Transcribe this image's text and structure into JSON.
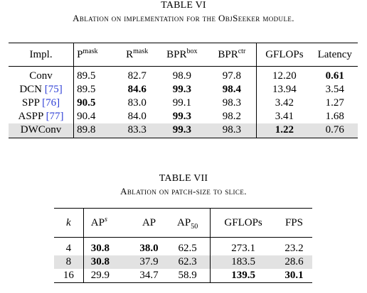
{
  "table6": {
    "number": "TABLE VI",
    "caption": "Ablation on implementation for the ObjSeeker module.",
    "headers": {
      "impl": "Impl.",
      "p_base": "P",
      "p_sup": "mask",
      "r_base": "R",
      "r_sup": "mask",
      "bprbox_base": "BPR",
      "bprbox_sup": "box",
      "bprctr_base": "BPR",
      "bprctr_sup": "ctr",
      "gflops": "GFLOPs",
      "latency": "Latency"
    },
    "rows": [
      {
        "name": "Conv",
        "cite": "",
        "p": "89.5",
        "r": "82.7",
        "bprbox": "98.9",
        "bprctr": "97.8",
        "gflops": "12.20",
        "latency": "0.61"
      },
      {
        "name": "DCN ",
        "cite": "[75]",
        "p": "89.5",
        "r": "84.6",
        "bprbox": "99.3",
        "bprctr": "98.4",
        "gflops": "13.94",
        "latency": "3.54"
      },
      {
        "name": "SPP ",
        "cite": "[76]",
        "p": "90.5",
        "r": "83.0",
        "bprbox": "99.1",
        "bprctr": "98.3",
        "gflops": "3.42",
        "latency": "1.27"
      },
      {
        "name": "ASPP ",
        "cite": "[77]",
        "p": "90.4",
        "r": "84.0",
        "bprbox": "99.3",
        "bprctr": "98.2",
        "gflops": "3.41",
        "latency": "1.68"
      },
      {
        "name": "DWConv",
        "cite": "",
        "p": "89.8",
        "r": "83.3",
        "bprbox": "99.3",
        "bprctr": "98.3",
        "gflops": "1.22",
        "latency": "0.76"
      }
    ]
  },
  "table7": {
    "number": "TABLE VII",
    "caption": "Ablation on patch-size to slice.",
    "headers": {
      "k": "k",
      "aps_base": "AP",
      "aps_sup": "s",
      "ap": "AP",
      "ap50_base": "AP",
      "ap50_sub": "50",
      "gflops": "GFLOPs",
      "fps": "FPS"
    },
    "rows": [
      {
        "k": "4",
        "aps": "30.8",
        "ap": "38.0",
        "ap50": "62.5",
        "gflops": "273.1",
        "fps": "23.2"
      },
      {
        "k": "8",
        "aps": "30.8",
        "ap": "37.9",
        "ap50": "62.3",
        "gflops": "183.5",
        "fps": "28.6"
      },
      {
        "k": "16",
        "aps": "29.9",
        "ap": "34.7",
        "ap50": "58.9",
        "gflops": "139.5",
        "fps": "30.1"
      }
    ]
  }
}
